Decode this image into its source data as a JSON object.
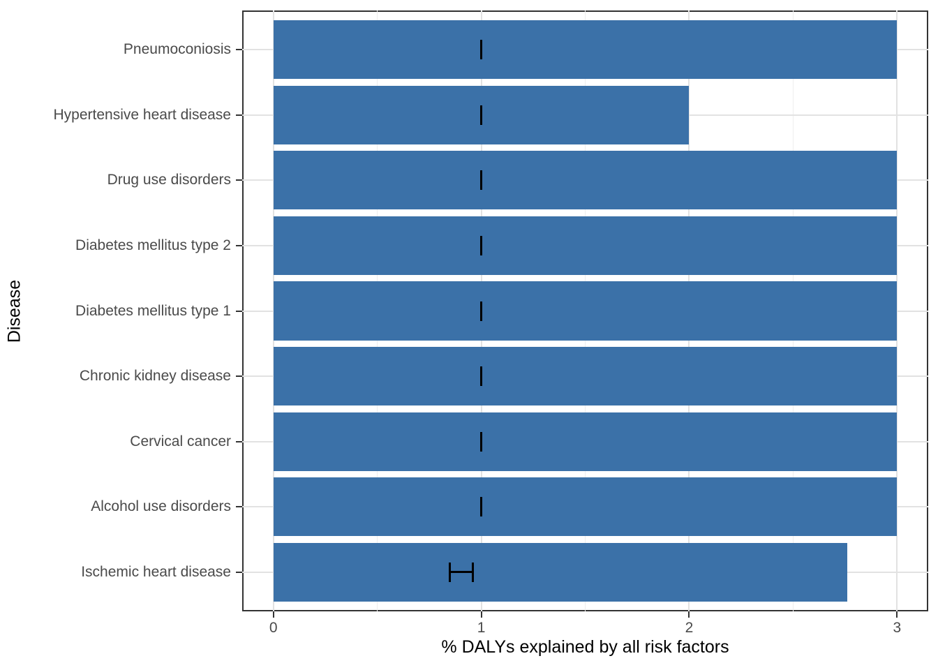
{
  "figure": {
    "background": "#ffffff"
  },
  "chart_data": {
    "type": "bar",
    "orientation": "horizontal",
    "title": "",
    "xlabel": "% DALYs explained by all risk factors",
    "ylabel": "Disease",
    "categories": [
      "Pneumoconiosis",
      "Hypertensive heart disease",
      "Drug use disorders",
      "Diabetes mellitus type 2",
      "Diabetes mellitus type 1",
      "Chronic kidney disease",
      "Cervical cancer",
      "Alcohol use disorders",
      "Ischemic heart disease"
    ],
    "values": [
      3,
      2,
      3,
      3,
      3,
      3,
      3,
      3,
      2.76
    ],
    "error_bars": [
      {
        "low": 1.0,
        "high": 1.0
      },
      {
        "low": 1.0,
        "high": 1.0
      },
      {
        "low": 1.0,
        "high": 1.0
      },
      {
        "low": 1.0,
        "high": 1.0
      },
      {
        "low": 1.0,
        "high": 1.0
      },
      {
        "low": 1.0,
        "high": 1.0
      },
      {
        "low": 1.0,
        "high": 1.0
      },
      {
        "low": 1.0,
        "high": 1.0
      },
      {
        "low": 0.85,
        "high": 0.96
      }
    ],
    "xlim": [
      0,
      3
    ],
    "xlim_display": [
      -0.15,
      3.15
    ],
    "x_ticks": [
      0,
      1,
      2,
      3
    ],
    "x_tick_labels": [
      "0",
      "1",
      "2",
      "3"
    ],
    "x_minor_gridlines": [
      0.5,
      1.5,
      2.5
    ],
    "grid": true,
    "legend": false,
    "style": {
      "bar_color": "#3b71a8",
      "error_color": "#000000",
      "grid_major_color": "#e2e2e2",
      "grid_minor_color": "#eeeeee",
      "panel_border_color": "#333333",
      "tick_color": "#333333",
      "tick_label_color": "#4a4a4a",
      "axis_title_color": "#000000"
    }
  }
}
